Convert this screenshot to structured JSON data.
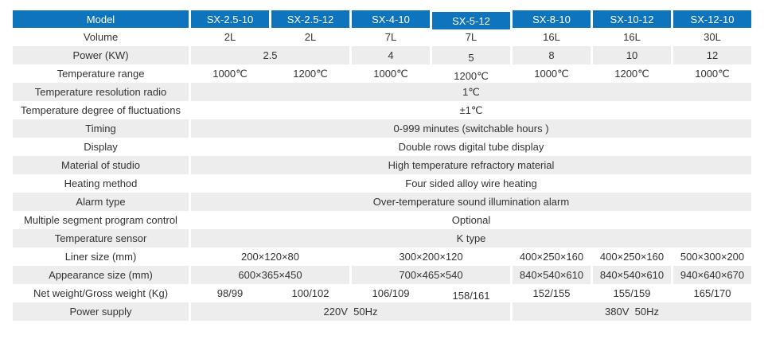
{
  "colors": {
    "header_bg": "#0e74bd",
    "header_text": "#ffffff",
    "row_alt_bg": "#ededed",
    "body_text": "#333333",
    "page_bg": "#ffffff"
  },
  "table": {
    "header": [
      "Model",
      "SX-2.5-10",
      "SX-2.5-12",
      "SX-4-10",
      "SX-5-12",
      "SX-8-10",
      "SX-10-12",
      "SX-12-10"
    ],
    "rows": [
      {
        "label": "Volume",
        "cells": [
          "2L",
          "2L",
          "7L",
          "7L",
          "16L",
          "16L",
          "30L"
        ]
      },
      {
        "label": "Power (KW)",
        "cells": [
          "2.5",
          "4",
          "5",
          "8",
          "10",
          "12"
        ]
      },
      {
        "label": "Temperature range",
        "cells": [
          "1000℃",
          "1200℃",
          "1000℃",
          "1200℃",
          "1000℃",
          "1200℃",
          "1000℃"
        ]
      },
      {
        "label": "Temperature resolution radio",
        "cells": [
          "1℃"
        ]
      },
      {
        "label": "Temperature degree of fluctuations",
        "cells": [
          "±1℃"
        ]
      },
      {
        "label": "Timing",
        "cells": [
          "0-999 minutes (switchable hours )"
        ]
      },
      {
        "label": "Display",
        "cells": [
          "Double rows digital tube display"
        ]
      },
      {
        "label": "Material of studio",
        "cells": [
          "High temperature refractory material"
        ]
      },
      {
        "label": "Heating method",
        "cells": [
          "Four sided alloy wire heating"
        ]
      },
      {
        "label": "Alarm type",
        "cells": [
          "Over-temperature sound illumination alarm"
        ]
      },
      {
        "label": "Multiple segment program control",
        "cells": [
          "Optional"
        ]
      },
      {
        "label": "Temperature sensor",
        "cells": [
          "K type"
        ]
      },
      {
        "label": "Liner size (mm)",
        "cells": [
          "200×120×80",
          "300×200×120",
          "400×250×160",
          "400×250×160",
          "500×300×200"
        ]
      },
      {
        "label": "Appearance size (mm)",
        "cells": [
          "600×365×450",
          "700×465×540",
          "840×540×610",
          "840×540×610",
          "940×640×670"
        ]
      },
      {
        "label": "Net weight/Gross weight (Kg)",
        "cells": [
          "98/99",
          "100/102",
          "106/109",
          "158/161",
          "152/155",
          "155/159",
          "165/170"
        ]
      },
      {
        "label": "Power supply",
        "cells": [
          "220V  50Hz",
          "380V  50Hz"
        ]
      }
    ]
  },
  "chart_data": {
    "type": "table",
    "columns": [
      "Model",
      "SX-2.5-10",
      "SX-2.5-12",
      "SX-4-10",
      "SX-5-12",
      "SX-8-10",
      "SX-10-12",
      "SX-12-10"
    ],
    "rows": [
      [
        "Volume",
        "2L",
        "2L",
        "7L",
        "7L",
        "16L",
        "16L",
        "30L"
      ],
      [
        "Power (KW)",
        "2.5",
        "2.5",
        "4",
        "5",
        "8",
        "10",
        "12"
      ],
      [
        "Temperature range",
        "1000℃",
        "1200℃",
        "1000℃",
        "1200℃",
        "1000℃",
        "1200℃",
        "1000℃"
      ],
      [
        "Temperature resolution radio",
        "1℃",
        "1℃",
        "1℃",
        "1℃",
        "1℃",
        "1℃",
        "1℃"
      ],
      [
        "Temperature degree of fluctuations",
        "±1℃",
        "±1℃",
        "±1℃",
        "±1℃",
        "±1℃",
        "±1℃",
        "±1℃"
      ],
      [
        "Timing",
        "0-999 minutes (switchable hours )",
        "0-999 minutes (switchable hours )",
        "0-999 minutes (switchable hours )",
        "0-999 minutes (switchable hours )",
        "0-999 minutes (switchable hours )",
        "0-999 minutes (switchable hours )",
        "0-999 minutes (switchable hours )"
      ],
      [
        "Display",
        "Double rows digital tube display",
        "Double rows digital tube display",
        "Double rows digital tube display",
        "Double rows digital tube display",
        "Double rows digital tube display",
        "Double rows digital tube display",
        "Double rows digital tube display"
      ],
      [
        "Material of studio",
        "High temperature refractory material",
        "High temperature refractory material",
        "High temperature refractory material",
        "High temperature refractory material",
        "High temperature refractory material",
        "High temperature refractory material",
        "High temperature refractory material"
      ],
      [
        "Heating method",
        "Four sided alloy wire heating",
        "Four sided alloy wire heating",
        "Four sided alloy wire heating",
        "Four sided alloy wire heating",
        "Four sided alloy wire heating",
        "Four sided alloy wire heating",
        "Four sided alloy wire heating"
      ],
      [
        "Alarm type",
        "Over-temperature sound illumination alarm",
        "Over-temperature sound illumination alarm",
        "Over-temperature sound illumination alarm",
        "Over-temperature sound illumination alarm",
        "Over-temperature sound illumination alarm",
        "Over-temperature sound illumination alarm",
        "Over-temperature sound illumination alarm"
      ],
      [
        "Multiple segment program control",
        "Optional",
        "Optional",
        "Optional",
        "Optional",
        "Optional",
        "Optional",
        "Optional"
      ],
      [
        "Temperature sensor",
        "K type",
        "K type",
        "K type",
        "K type",
        "K type",
        "K type",
        "K type"
      ],
      [
        "Liner size (mm)",
        "200×120×80",
        "200×120×80",
        "300×200×120",
        "300×200×120",
        "400×250×160",
        "400×250×160",
        "500×300×200"
      ],
      [
        "Appearance size (mm)",
        "600×365×450",
        "600×365×450",
        "700×465×540",
        "700×465×540",
        "840×540×610",
        "840×540×610",
        "940×640×670"
      ],
      [
        "Net weight/Gross weight (Kg)",
        "98/99",
        "100/102",
        "106/109",
        "158/161",
        "152/155",
        "155/159",
        "165/170"
      ],
      [
        "Power supply",
        "220V 50Hz",
        "220V 50Hz",
        "220V 50Hz",
        "220V 50Hz",
        "380V 50Hz",
        "380V 50Hz",
        "380V 50Hz"
      ]
    ]
  }
}
